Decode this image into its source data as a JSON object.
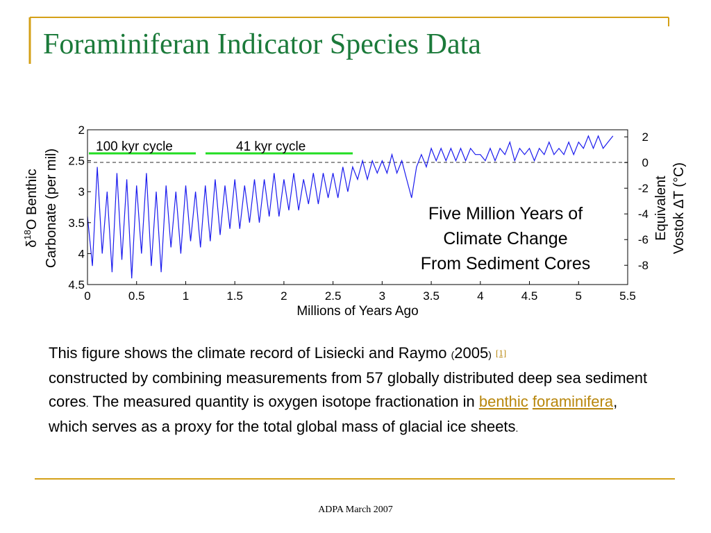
{
  "slide_title": "Foraminiferan Indicator Species Data",
  "chart_data": {
    "type": "line",
    "xlabel": "Millions of Years Ago",
    "ylabel": {
      "symbol": "δ",
      "superscript": "18",
      "line1": "O Benthic",
      "line2": "Carbonate (per mil)"
    },
    "y2label": {
      "line1": "Equivalent",
      "line2": "Vostok ΔT (°C)"
    },
    "annotations": [
      "100 kyr cycle",
      "41 kyr cycle",
      "Five Million Years of",
      "Climate Change",
      "From Sediment Cores"
    ],
    "xlim": [
      0,
      5.5
    ],
    "xticks": [
      0,
      0.5,
      1,
      1.5,
      2,
      2.5,
      3,
      3.5,
      4,
      4.5,
      5,
      5.5
    ],
    "ylim": [
      4.5,
      2
    ],
    "yticks": [
      2,
      2.5,
      3,
      3.5,
      4,
      4.5
    ],
    "y2lim": [
      -9.5,
      2.55
    ],
    "y2ticks": [
      2,
      0,
      -2,
      -4,
      -6,
      -8
    ],
    "x": [
      0,
      0.05,
      0.1,
      0.15,
      0.2,
      0.25,
      0.3,
      0.35,
      0.4,
      0.45,
      0.5,
      0.55,
      0.6,
      0.65,
      0.7,
      0.75,
      0.8,
      0.85,
      0.9,
      0.95,
      1,
      1.05,
      1.1,
      1.15,
      1.2,
      1.25,
      1.3,
      1.35,
      1.4,
      1.45,
      1.5,
      1.55,
      1.6,
      1.65,
      1.7,
      1.75,
      1.8,
      1.85,
      1.9,
      1.95,
      2,
      2.05,
      2.1,
      2.15,
      2.2,
      2.25,
      2.3,
      2.35,
      2.4,
      2.45,
      2.5,
      2.55,
      2.6,
      2.65,
      2.7,
      2.75,
      2.8,
      2.85,
      2.9,
      2.95,
      3,
      3.05,
      3.1,
      3.15,
      3.2,
      3.25,
      3.3,
      3.35,
      3.4,
      3.45,
      3.5,
      3.55,
      3.6,
      3.65,
      3.7,
      3.75,
      3.8,
      3.85,
      3.9,
      3.95,
      4,
      4.05,
      4.1,
      4.15,
      4.2,
      4.25,
      4.3,
      4.35,
      4.4,
      4.45,
      4.5,
      4.55,
      4.6,
      4.65,
      4.7,
      4.75,
      4.8,
      4.85,
      4.9,
      4.95,
      5,
      5.05,
      5.1,
      5.15,
      5.2,
      5.25,
      5.3,
      5.35
    ],
    "series": [
      {
        "color": "#1a1aee",
        "values": [
          3.4,
          4.2,
          2.6,
          4.0,
          3.0,
          4.3,
          2.7,
          4.1,
          2.8,
          4.4,
          2.9,
          4.0,
          2.7,
          4.2,
          3.0,
          4.3,
          2.9,
          3.9,
          3.0,
          4.0,
          2.9,
          3.8,
          3.0,
          3.9,
          2.9,
          3.8,
          2.8,
          3.7,
          2.9,
          3.6,
          2.8,
          3.6,
          2.9,
          3.5,
          2.8,
          3.5,
          2.8,
          3.4,
          2.7,
          3.4,
          2.8,
          3.3,
          2.7,
          3.3,
          2.8,
          3.2,
          2.7,
          3.2,
          2.7,
          3.1,
          2.7,
          3.1,
          2.6,
          3.0,
          2.6,
          2.8,
          2.5,
          2.8,
          2.5,
          2.7,
          2.5,
          2.7,
          2.4,
          2.7,
          2.5,
          2.8,
          3.1,
          2.6,
          2.4,
          2.6,
          2.3,
          2.5,
          2.3,
          2.5,
          2.3,
          2.5,
          2.3,
          2.5,
          2.3,
          2.4,
          2.4,
          2.5,
          2.3,
          2.5,
          2.3,
          2.4,
          2.2,
          2.5,
          2.3,
          2.4,
          2.3,
          2.5,
          2.3,
          2.4,
          2.2,
          2.4,
          2.3,
          2.4,
          2.2,
          2.4,
          2.2,
          2.3,
          2.1,
          2.3,
          2.1,
          2.3,
          2.2,
          2.1
        ]
      }
    ]
  },
  "body": {
    "part1": "This figure shows the climate record of Lisiecki and Raymo ",
    "paren_open": "(",
    "year": "2005",
    "paren_close": ")",
    "ref": "[1]",
    "part2": "constructed by combining measurements from 57 globally distributed deep sea sediment cores",
    "period1": ".",
    "part3": "The measured quantity is oxygen isotope fractionation in ",
    "link1": "benthic",
    "link2": "foraminifera",
    "part4": ", which serves as a proxy for the total global mass of glacial ice sheets",
    "period2": "."
  },
  "footer": "ADPA March 2007"
}
